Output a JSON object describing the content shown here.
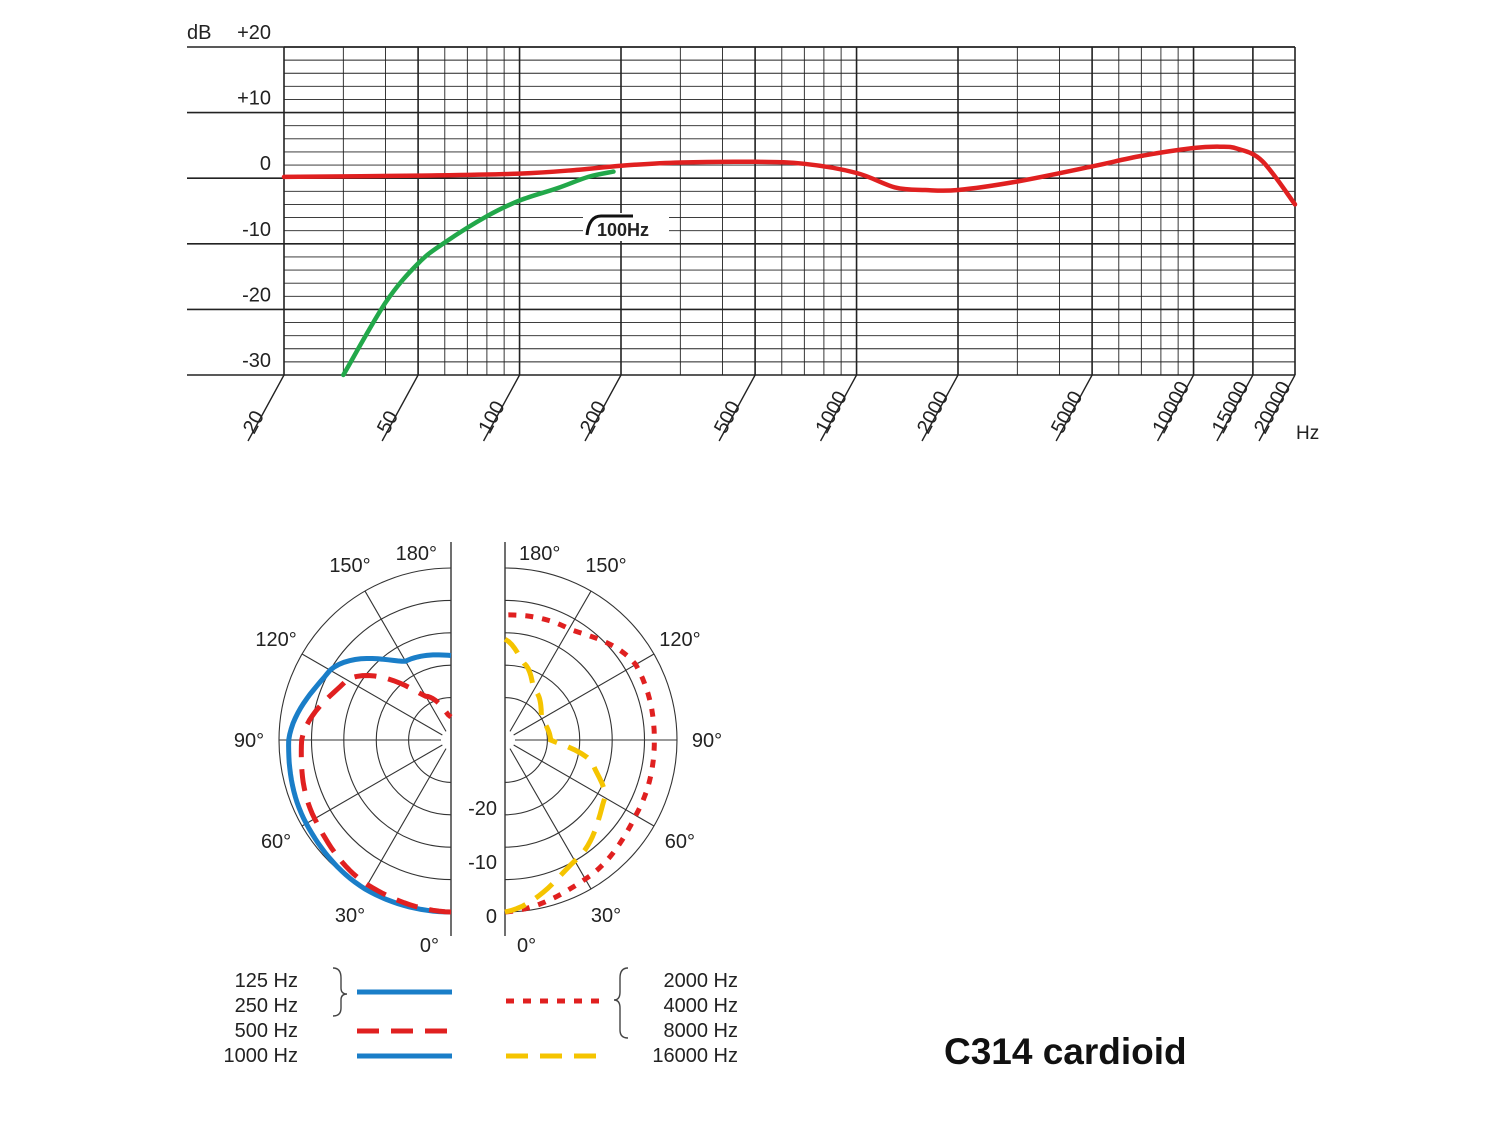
{
  "chart_data": [
    {
      "type": "line",
      "xscale": "log",
      "xlim": [
        20,
        20000
      ],
      "ylim": [
        -30,
        20
      ],
      "y_axis_unit": "dB",
      "x_axis_unit": "Hz",
      "y_ticks": [
        {
          "value": 20,
          "label": "+20"
        },
        {
          "value": 10,
          "label": "+10"
        },
        {
          "value": 0,
          "label": "0"
        },
        {
          "value": -10,
          "label": "-10"
        },
        {
          "value": -20,
          "label": "-20"
        },
        {
          "value": -30,
          "label": "-30"
        }
      ],
      "x_ticks": [
        {
          "value": 20,
          "label": "20"
        },
        {
          "value": 50,
          "label": "50"
        },
        {
          "value": 100,
          "label": "100"
        },
        {
          "value": 200,
          "label": "200"
        },
        {
          "value": 500,
          "label": "500"
        },
        {
          "value": 1000,
          "label": "1000"
        },
        {
          "value": 2000,
          "label": "2000"
        },
        {
          "value": 5000,
          "label": "5000"
        },
        {
          "value": 10000,
          "label": "10000"
        },
        {
          "value": 15000,
          "label": "15000"
        },
        {
          "value": 20000,
          "label": "20000"
        }
      ],
      "grid": true,
      "annotation": "100Hz",
      "series": [
        {
          "color": "#e02020",
          "x": [
            20,
            50,
            100,
            150,
            200,
            300,
            500,
            700,
            1000,
            1300,
            1600,
            2000,
            3000,
            5000,
            7000,
            10000,
            12000,
            13500,
            16000,
            20000
          ],
          "y": [
            0.2,
            0.4,
            0.7,
            1.3,
            1.9,
            2.4,
            2.5,
            2.2,
            0.8,
            -1.4,
            -1.8,
            -1.8,
            -0.5,
            1.8,
            3.4,
            4.6,
            4.8,
            4.5,
            2.6,
            -4
          ]
        },
        {
          "color": "#22a84a",
          "x": [
            30,
            40,
            50,
            60,
            80,
            100,
            130,
            160,
            190
          ],
          "y": [
            -30,
            -19,
            -13,
            -9.8,
            -5.8,
            -3.4,
            -1.5,
            0.2,
            1.0
          ]
        }
      ]
    },
    {
      "type": "polar",
      "angle_labels_left": [
        "180°",
        "150°",
        "120°",
        "90°",
        "60°",
        "30°",
        "0°"
      ],
      "angle_labels_right": [
        "180°",
        "150°",
        "120°",
        "90°",
        "60°",
        "30°",
        "0°"
      ],
      "db_labels": [
        "-20",
        "-10",
        "0"
      ],
      "legend_left": {
        "items": [
          {
            "label": "125 Hz",
            "grouped": true
          },
          {
            "label": "250 Hz",
            "grouped": true
          },
          {
            "label": "500 Hz",
            "color": "#e02020",
            "style": "dashed"
          },
          {
            "label": "1000 Hz",
            "color": "#1a7ec8",
            "style": "solid"
          }
        ],
        "group_color": "#1a7ec8",
        "group_style": "solid"
      },
      "legend_right": {
        "items": [
          {
            "label": "2000 Hz",
            "grouped": true
          },
          {
            "label": "4000 Hz",
            "grouped": true
          },
          {
            "label": "8000 Hz",
            "grouped": true
          },
          {
            "label": "16000 Hz",
            "color": "#f5c400",
            "style": "dashed"
          }
        ],
        "group_color": "#e02020",
        "group_style": "dotted"
      },
      "series": [
        {
          "side": "left",
          "color": "#1a7ec8",
          "style": "solid",
          "name": "125 Hz",
          "angles": [
            0,
            30,
            60,
            90,
            120,
            150,
            180
          ],
          "r": [
            1.0,
            1.0,
            0.97,
            0.94,
            0.8,
            0.5,
            0.46
          ]
        },
        {
          "side": "left",
          "color": "#e02020",
          "style": "dashed",
          "name": "500 Hz",
          "angles": [
            0,
            30,
            60,
            90,
            120,
            150,
            175,
            180
          ],
          "r": [
            1.0,
            0.97,
            0.91,
            0.86,
            0.68,
            0.25,
            0.09,
            0.08
          ]
        },
        {
          "side": "right",
          "color": "#e02020",
          "style": "dotted",
          "name": "2000 Hz",
          "angles": [
            0,
            30,
            60,
            90,
            120,
            150,
            180
          ],
          "r": [
            1.0,
            0.93,
            0.87,
            0.86,
            0.87,
            0.73,
            0.71
          ]
        },
        {
          "side": "right",
          "color": "#f5c400",
          "style": "dashed",
          "name": "16000 Hz",
          "angles": [
            0,
            30,
            60,
            75,
            90,
            120,
            150,
            165,
            180
          ],
          "r": [
            1.0,
            0.8,
            0.65,
            0.5,
            0.22,
            0.2,
            0.3,
            0.42,
            0.56
          ]
        }
      ]
    }
  ],
  "caption": "C314 cardioid"
}
